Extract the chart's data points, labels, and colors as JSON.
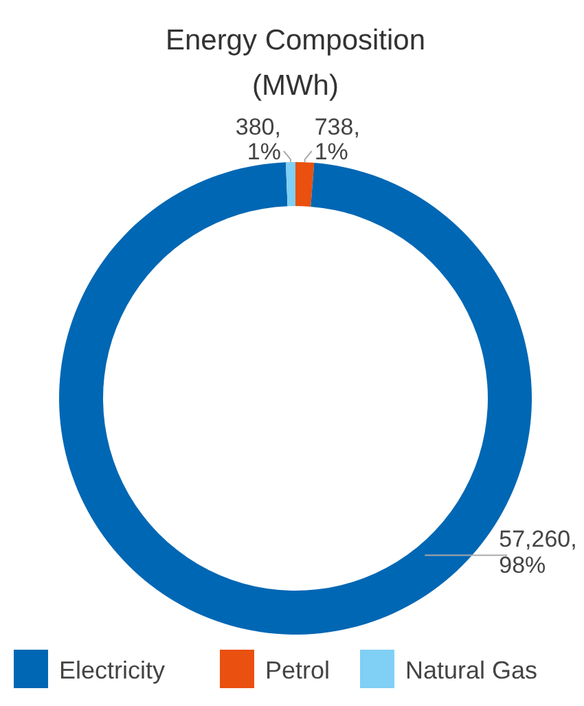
{
  "chart_data": {
    "type": "donut",
    "title": "Energy Composition",
    "subtitle": "(MWh)",
    "categories": [
      "Electricity",
      "Petrol",
      "Natural Gas"
    ],
    "values": [
      57260,
      738,
      380
    ],
    "colors": [
      "#0067b4",
      "#ea500f",
      "#80cff4"
    ],
    "value_labels": [
      "57,260,\n98%",
      "738,\n1%",
      "380,\n1%"
    ],
    "legend": "bottom"
  }
}
